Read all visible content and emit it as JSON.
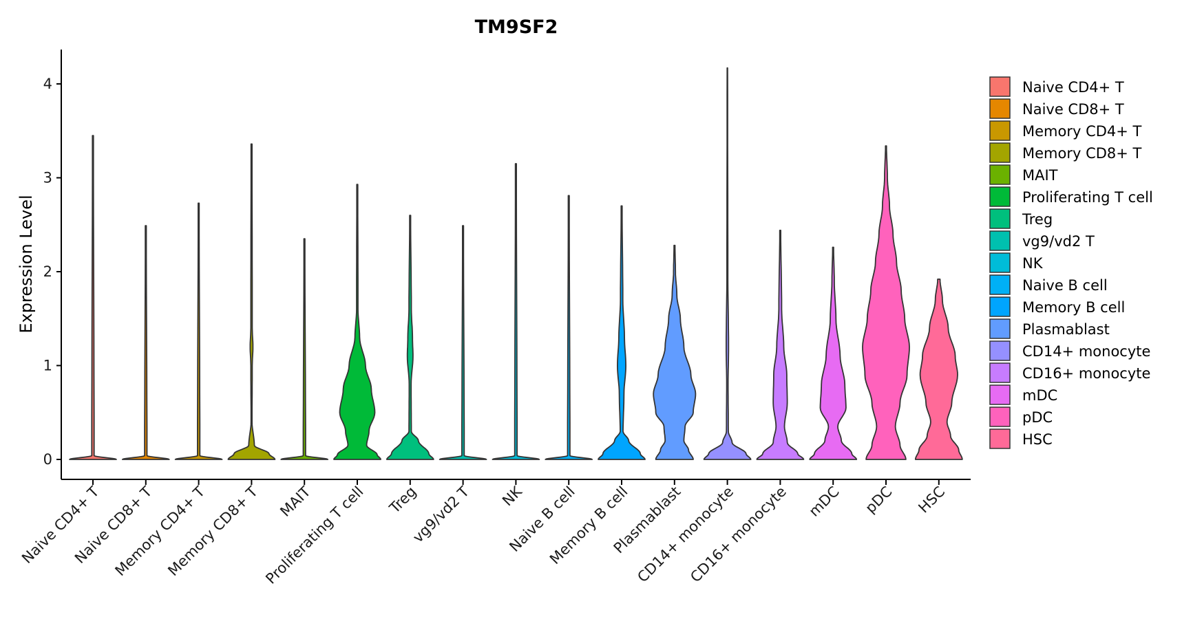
{
  "chart_data": {
    "type": "violin",
    "title": "TM9SF2",
    "xlabel": "",
    "ylabel": "Expression Level",
    "ylim": [
      -0.2,
      4.4
    ],
    "yticks": [
      0,
      1,
      2,
      3,
      4
    ],
    "grid": false,
    "legend_position": "right",
    "categories": [
      "Naive CD4+ T",
      "Naive CD8+ T",
      "Memory CD4+ T",
      "Memory CD8+ T",
      "MAIT",
      "Proliferating T cell",
      "Treg",
      "vg9/vd2 T",
      "NK",
      "Naive B cell",
      "Memory B cell",
      "Plasmablast",
      "CD14+ monocyte",
      "CD16+ monocyte",
      "mDC",
      "pDC",
      "HSC"
    ],
    "colors": [
      "#F8766D",
      "#E58700",
      "#C99800",
      "#A3A500",
      "#6BB100",
      "#00BA38",
      "#00BF7D",
      "#00C0AF",
      "#00BCD8",
      "#00B0F6",
      "#00A5FF",
      "#619CFF",
      "#9590FF",
      "#C77CFF",
      "#E76BF3",
      "#FF62BC",
      "#FF6A98"
    ],
    "series": [
      {
        "name": "Naive CD4+ T",
        "max": 3.45,
        "profile": [
          [
            0,
            1.0
          ],
          [
            0.04,
            0.05
          ],
          [
            3.45,
            0.02
          ]
        ]
      },
      {
        "name": "Naive CD8+ T",
        "max": 2.49,
        "profile": [
          [
            0,
            1.0
          ],
          [
            0.04,
            0.05
          ],
          [
            2.49,
            0.02
          ]
        ]
      },
      {
        "name": "Memory CD4+ T",
        "max": 2.73,
        "profile": [
          [
            0,
            1.0
          ],
          [
            0.04,
            0.05
          ],
          [
            2.73,
            0.02
          ]
        ]
      },
      {
        "name": "Memory CD8+ T",
        "max": 3.36,
        "profile": [
          [
            0,
            1.0
          ],
          [
            0.06,
            0.75
          ],
          [
            0.15,
            0.12
          ],
          [
            0.4,
            0.02
          ],
          [
            1.0,
            0.03
          ],
          [
            1.2,
            0.06
          ],
          [
            1.4,
            0.03
          ],
          [
            3.36,
            0.02
          ]
        ]
      },
      {
        "name": "MAIT",
        "max": 2.35,
        "profile": [
          [
            0,
            1.0
          ],
          [
            0.04,
            0.05
          ],
          [
            2.35,
            0.02
          ]
        ]
      },
      {
        "name": "Proliferating T cell",
        "max": 2.93,
        "profile": [
          [
            0,
            1.0
          ],
          [
            0.05,
            0.85
          ],
          [
            0.15,
            0.4
          ],
          [
            0.3,
            0.5
          ],
          [
            0.5,
            0.75
          ],
          [
            0.75,
            0.6
          ],
          [
            1.0,
            0.35
          ],
          [
            1.3,
            0.1
          ],
          [
            1.6,
            0.03
          ],
          [
            2.93,
            0.02
          ]
        ]
      },
      {
        "name": "Treg",
        "max": 2.6,
        "profile": [
          [
            0,
            1.0
          ],
          [
            0.06,
            0.8
          ],
          [
            0.2,
            0.35
          ],
          [
            0.3,
            0.05
          ],
          [
            0.8,
            0.04
          ],
          [
            1.1,
            0.12
          ],
          [
            1.3,
            0.1
          ],
          [
            1.6,
            0.05
          ],
          [
            2.6,
            0.02
          ]
        ]
      },
      {
        "name": "vg9/vd2 T",
        "max": 2.49,
        "profile": [
          [
            0,
            1.0
          ],
          [
            0.04,
            0.05
          ],
          [
            2.49,
            0.02
          ]
        ]
      },
      {
        "name": "NK",
        "max": 3.15,
        "profile": [
          [
            0,
            1.0
          ],
          [
            0.04,
            0.05
          ],
          [
            3.15,
            0.02
          ]
        ]
      },
      {
        "name": "Naive B cell",
        "max": 2.81,
        "profile": [
          [
            0,
            1.0
          ],
          [
            0.04,
            0.05
          ],
          [
            2.81,
            0.02
          ]
        ]
      },
      {
        "name": "Memory B cell",
        "max": 2.7,
        "profile": [
          [
            0,
            1.0
          ],
          [
            0.06,
            0.8
          ],
          [
            0.2,
            0.3
          ],
          [
            0.3,
            0.06
          ],
          [
            0.7,
            0.1
          ],
          [
            1.0,
            0.18
          ],
          [
            1.3,
            0.12
          ],
          [
            1.7,
            0.05
          ],
          [
            2.7,
            0.02
          ]
        ]
      },
      {
        "name": "Plasmablast",
        "max": 2.28,
        "profile": [
          [
            0,
            0.8
          ],
          [
            0.1,
            0.6
          ],
          [
            0.2,
            0.4
          ],
          [
            0.35,
            0.45
          ],
          [
            0.5,
            0.8
          ],
          [
            0.7,
            0.9
          ],
          [
            0.9,
            0.7
          ],
          [
            1.2,
            0.4
          ],
          [
            1.5,
            0.25
          ],
          [
            1.75,
            0.1
          ],
          [
            2.0,
            0.04
          ],
          [
            2.28,
            0.02
          ]
        ]
      },
      {
        "name": "CD14+ monocyte",
        "max": 4.17,
        "profile": [
          [
            0,
            1.0
          ],
          [
            0.06,
            0.8
          ],
          [
            0.18,
            0.2
          ],
          [
            0.3,
            0.04
          ],
          [
            0.8,
            0.03
          ],
          [
            1.2,
            0.05
          ],
          [
            2.0,
            0.02
          ],
          [
            4.17,
            0.01
          ]
        ]
      },
      {
        "name": "CD16+ monocyte",
        "max": 2.44,
        "profile": [
          [
            0,
            1.0
          ],
          [
            0.06,
            0.75
          ],
          [
            0.18,
            0.3
          ],
          [
            0.35,
            0.18
          ],
          [
            0.6,
            0.3
          ],
          [
            0.9,
            0.28
          ],
          [
            1.2,
            0.15
          ],
          [
            1.6,
            0.06
          ],
          [
            2.44,
            0.02
          ]
        ]
      },
      {
        "name": "mDC",
        "max": 2.26,
        "profile": [
          [
            0,
            1.0
          ],
          [
            0.06,
            0.8
          ],
          [
            0.2,
            0.35
          ],
          [
            0.35,
            0.2
          ],
          [
            0.55,
            0.55
          ],
          [
            0.8,
            0.5
          ],
          [
            1.1,
            0.3
          ],
          [
            1.5,
            0.12
          ],
          [
            1.9,
            0.05
          ],
          [
            2.26,
            0.02
          ]
        ]
      },
      {
        "name": "pDC",
        "max": 3.34,
        "profile": [
          [
            0,
            0.85
          ],
          [
            0.15,
            0.6
          ],
          [
            0.35,
            0.4
          ],
          [
            0.6,
            0.6
          ],
          [
            0.9,
            0.9
          ],
          [
            1.2,
            1.0
          ],
          [
            1.5,
            0.8
          ],
          [
            1.8,
            0.65
          ],
          [
            2.1,
            0.45
          ],
          [
            2.4,
            0.3
          ],
          [
            2.7,
            0.15
          ],
          [
            3.0,
            0.06
          ],
          [
            3.34,
            0.02
          ]
        ]
      },
      {
        "name": "HSC",
        "max": 1.92,
        "profile": [
          [
            0,
            1.0
          ],
          [
            0.1,
            0.85
          ],
          [
            0.25,
            0.5
          ],
          [
            0.4,
            0.35
          ],
          [
            0.6,
            0.55
          ],
          [
            0.9,
            0.8
          ],
          [
            1.1,
            0.7
          ],
          [
            1.4,
            0.4
          ],
          [
            1.7,
            0.15
          ],
          [
            1.92,
            0.05
          ]
        ]
      }
    ]
  }
}
